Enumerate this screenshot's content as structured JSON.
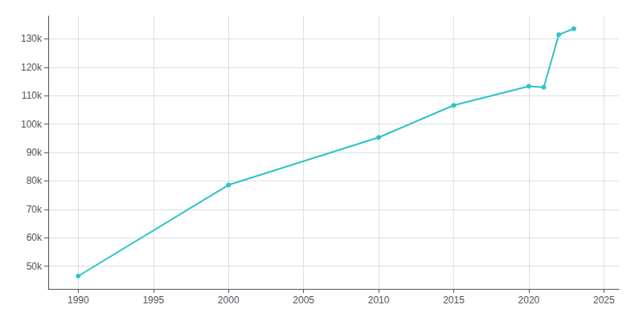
{
  "chart_data": {
    "type": "line",
    "x": [
      1990,
      2000,
      2010,
      2015,
      2020,
      2021,
      2022,
      2023
    ],
    "values": [
      46521,
      78557,
      95290,
      106586,
      113308,
      112945,
      131455,
      133558
    ],
    "color": "#2CC4C4",
    "marker": "circle",
    "xlim": [
      1988,
      2026
    ],
    "xticks": [
      1990,
      1995,
      2000,
      2005,
      2010,
      2015,
      2020,
      2025
    ],
    "ylim": [
      42000,
      138000
    ],
    "yticks": [
      {
        "value": 50000,
        "label": "50k"
      },
      {
        "value": 60000,
        "label": "60k"
      },
      {
        "value": 70000,
        "label": "70k"
      },
      {
        "value": 80000,
        "label": "80k"
      },
      {
        "value": 90000,
        "label": "90k"
      },
      {
        "value": 100000,
        "label": "100k"
      },
      {
        "value": 110000,
        "label": "110k"
      },
      {
        "value": 120000,
        "label": "120k"
      },
      {
        "value": 130000,
        "label": "130k"
      }
    ],
    "grid": true
  }
}
